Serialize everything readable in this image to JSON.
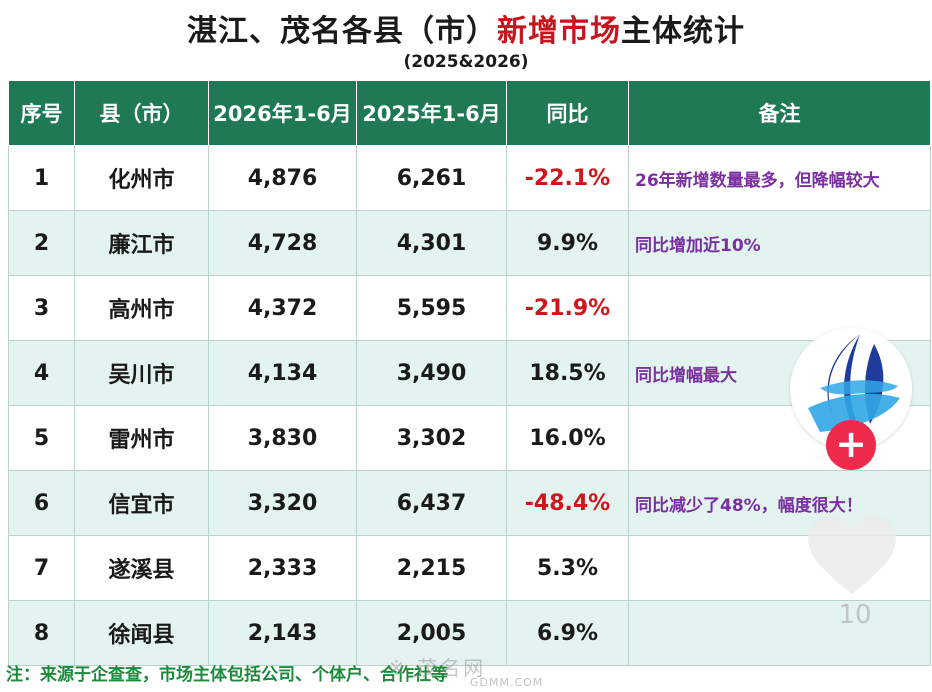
{
  "title": {
    "part1": "湛江、茂名各县（市）",
    "accent": "新增市场",
    "part2": "主体统计",
    "subtitle": "(2025&2026)"
  },
  "table": {
    "headers": [
      "序号",
      "县（市）",
      "2026年1-6月",
      "2025年1-6月",
      "同比",
      "备注"
    ],
    "rows": [
      {
        "no": "1",
        "county": "化州市",
        "y2026": "4,876",
        "y2025": "6,261",
        "yoy": "-22.1%",
        "note": "26年新增数量最多，但降幅较大"
      },
      {
        "no": "2",
        "county": "廉江市",
        "y2026": "4,728",
        "y2025": "4,301",
        "yoy": "9.9%",
        "note": "同比增加近10%"
      },
      {
        "no": "3",
        "county": "高州市",
        "y2026": "4,372",
        "y2025": "5,595",
        "yoy": "-21.9%",
        "note": ""
      },
      {
        "no": "4",
        "county": "吴川市",
        "y2026": "4,134",
        "y2025": "3,490",
        "yoy": "18.5%",
        "note": "同比增幅最大"
      },
      {
        "no": "5",
        "county": "雷州市",
        "y2026": "3,830",
        "y2025": "3,302",
        "yoy": "16.0%",
        "note": ""
      },
      {
        "no": "6",
        "county": "信宜市",
        "y2026": "3,320",
        "y2025": "6,437",
        "yoy": "-48.4%",
        "note": "同比减少了48%，幅度很大！"
      },
      {
        "no": "7",
        "county": "遂溪县",
        "y2026": "2,333",
        "y2025": "2,215",
        "yoy": "5.3%",
        "note": ""
      },
      {
        "no": "8",
        "county": "徐闻县",
        "y2026": "2,143",
        "y2025": "2,005",
        "yoy": "6.9%",
        "note": ""
      }
    ]
  },
  "footer": "注：来源于企查查，市场主体包括公司、个体户、合作社等",
  "watermark": {
    "text": "※ 茂名网",
    "sub": "GDMM.COM"
  },
  "overlay": {
    "follow_label": "+",
    "like_count": "10"
  },
  "colors": {
    "header_bg": "#1f7a54",
    "negative": "#d0151c",
    "note": "#7a2fa3",
    "row_alt": "#e3f3f0",
    "footer": "#1d8a3c",
    "follow": "#ee2a4d"
  }
}
